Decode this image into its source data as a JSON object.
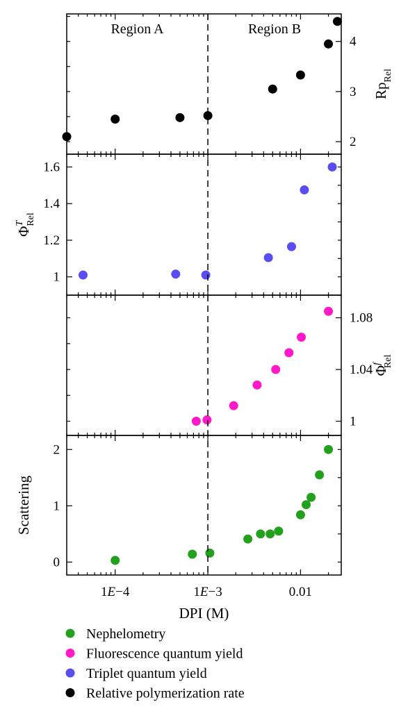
{
  "chart_data": [
    {
      "type": "scatter",
      "panel": "relative-polymerization-rate",
      "x_scale": "log",
      "xlim": [
        3e-05,
        0.0275
      ],
      "ylim": [
        1.75,
        4.55
      ],
      "yaxis_side": "right",
      "ylabel": {
        "base": "R",
        "p": "p",
        "sub": "Rel"
      },
      "ytick_values": [
        2,
        3,
        4
      ],
      "ytick_labels": [
        "2",
        "3",
        "4"
      ],
      "region_labels": [
        "Region A",
        "Region B"
      ],
      "series": [
        {
          "name": "Relative polymerization rate",
          "color": "#000000",
          "x": [
            3e-05,
            0.0001,
            0.0005,
            0.001,
            0.005,
            0.01,
            0.02,
            0.025
          ],
          "y": [
            2.1,
            2.45,
            2.48,
            2.52,
            3.05,
            3.33,
            3.95,
            4.4
          ]
        }
      ]
    },
    {
      "type": "scatter",
      "panel": "triplet-quantum-yield",
      "x_scale": "log",
      "xlim": [
        3e-05,
        0.0275
      ],
      "ylim": [
        0.9,
        1.67
      ],
      "yaxis_side": "left",
      "ylabel": {
        "base": "Φ",
        "sup": "T",
        "sub": "Rel"
      },
      "ytick_values": [
        1,
        1.2,
        1.4,
        1.6
      ],
      "ytick_labels": [
        "1",
        "1.2",
        "1.4",
        "1.6"
      ],
      "series": [
        {
          "name": "Triplet quantum yield",
          "color": "#5a4df0",
          "x": [
            4.5e-05,
            0.00045,
            0.00095,
            0.0045,
            0.008,
            0.011,
            0.022
          ],
          "y": [
            1.01,
            1.015,
            1.01,
            1.105,
            1.165,
            1.475,
            1.6
          ]
        }
      ]
    },
    {
      "type": "scatter",
      "panel": "fluorescence-quantum-yield",
      "x_scale": "log",
      "xlim": [
        3e-05,
        0.0275
      ],
      "ylim": [
        0.989,
        1.0975
      ],
      "yaxis_side": "right",
      "ylabel": {
        "base": "Φ",
        "sup": "f",
        "sub": "Rel"
      },
      "ytick_values": [
        1,
        1.04,
        1.08
      ],
      "ytick_labels": [
        "1",
        "1.04",
        "1.08"
      ],
      "series": [
        {
          "name": "Fluorescence quantum yield",
          "color": "#ff19c8",
          "x": [
            0.00075,
            0.00098,
            0.0019,
            0.0034,
            0.0054,
            0.0075,
            0.0102,
            0.02
          ],
          "y": [
            1.0,
            1.001,
            1.012,
            1.028,
            1.04,
            1.053,
            1.065,
            1.085
          ]
        }
      ]
    },
    {
      "type": "scatter",
      "panel": "nephelometry",
      "x_scale": "log",
      "xlim": [
        3e-05,
        0.0275
      ],
      "ylim": [
        -0.23,
        2.25
      ],
      "yaxis_side": "left",
      "ylabel": {
        "text": "Scattering"
      },
      "ytick_values": [
        0,
        1,
        2
      ],
      "ytick_labels": [
        "0",
        "1",
        "2"
      ],
      "xticks": [
        0.0001,
        0.001,
        0.01
      ],
      "xtick_labels": [
        {
          "mantissa": "1",
          "e": "E",
          "exp": "−4"
        },
        {
          "mantissa": "1",
          "e": "E",
          "exp": "−3"
        },
        {
          "mantissa": "0.01",
          "e": "",
          "exp": ""
        }
      ],
      "xlabel": "DPI (M)",
      "series": [
        {
          "name": "Nephelometry",
          "color": "#22a01e",
          "x": [
            0.0001,
            0.00068,
            0.00105,
            0.0027,
            0.0037,
            0.0047,
            0.0058,
            0.01,
            0.0115,
            0.013,
            0.016,
            0.02
          ],
          "y": [
            0.03,
            0.14,
            0.16,
            0.41,
            0.5,
            0.5,
            0.55,
            0.84,
            1.02,
            1.15,
            1.55,
            2.0
          ]
        }
      ]
    }
  ],
  "divider_x": 0.001,
  "legend": [
    {
      "label": "Nephelometry",
      "color": "#22a01e"
    },
    {
      "label": "Fluorescence quantum yield",
      "color": "#ff19c8"
    },
    {
      "label": "Triplet quantum yield",
      "color": "#5a4df0"
    },
    {
      "label": "Relative polymerization rate",
      "color": "#000000"
    }
  ]
}
